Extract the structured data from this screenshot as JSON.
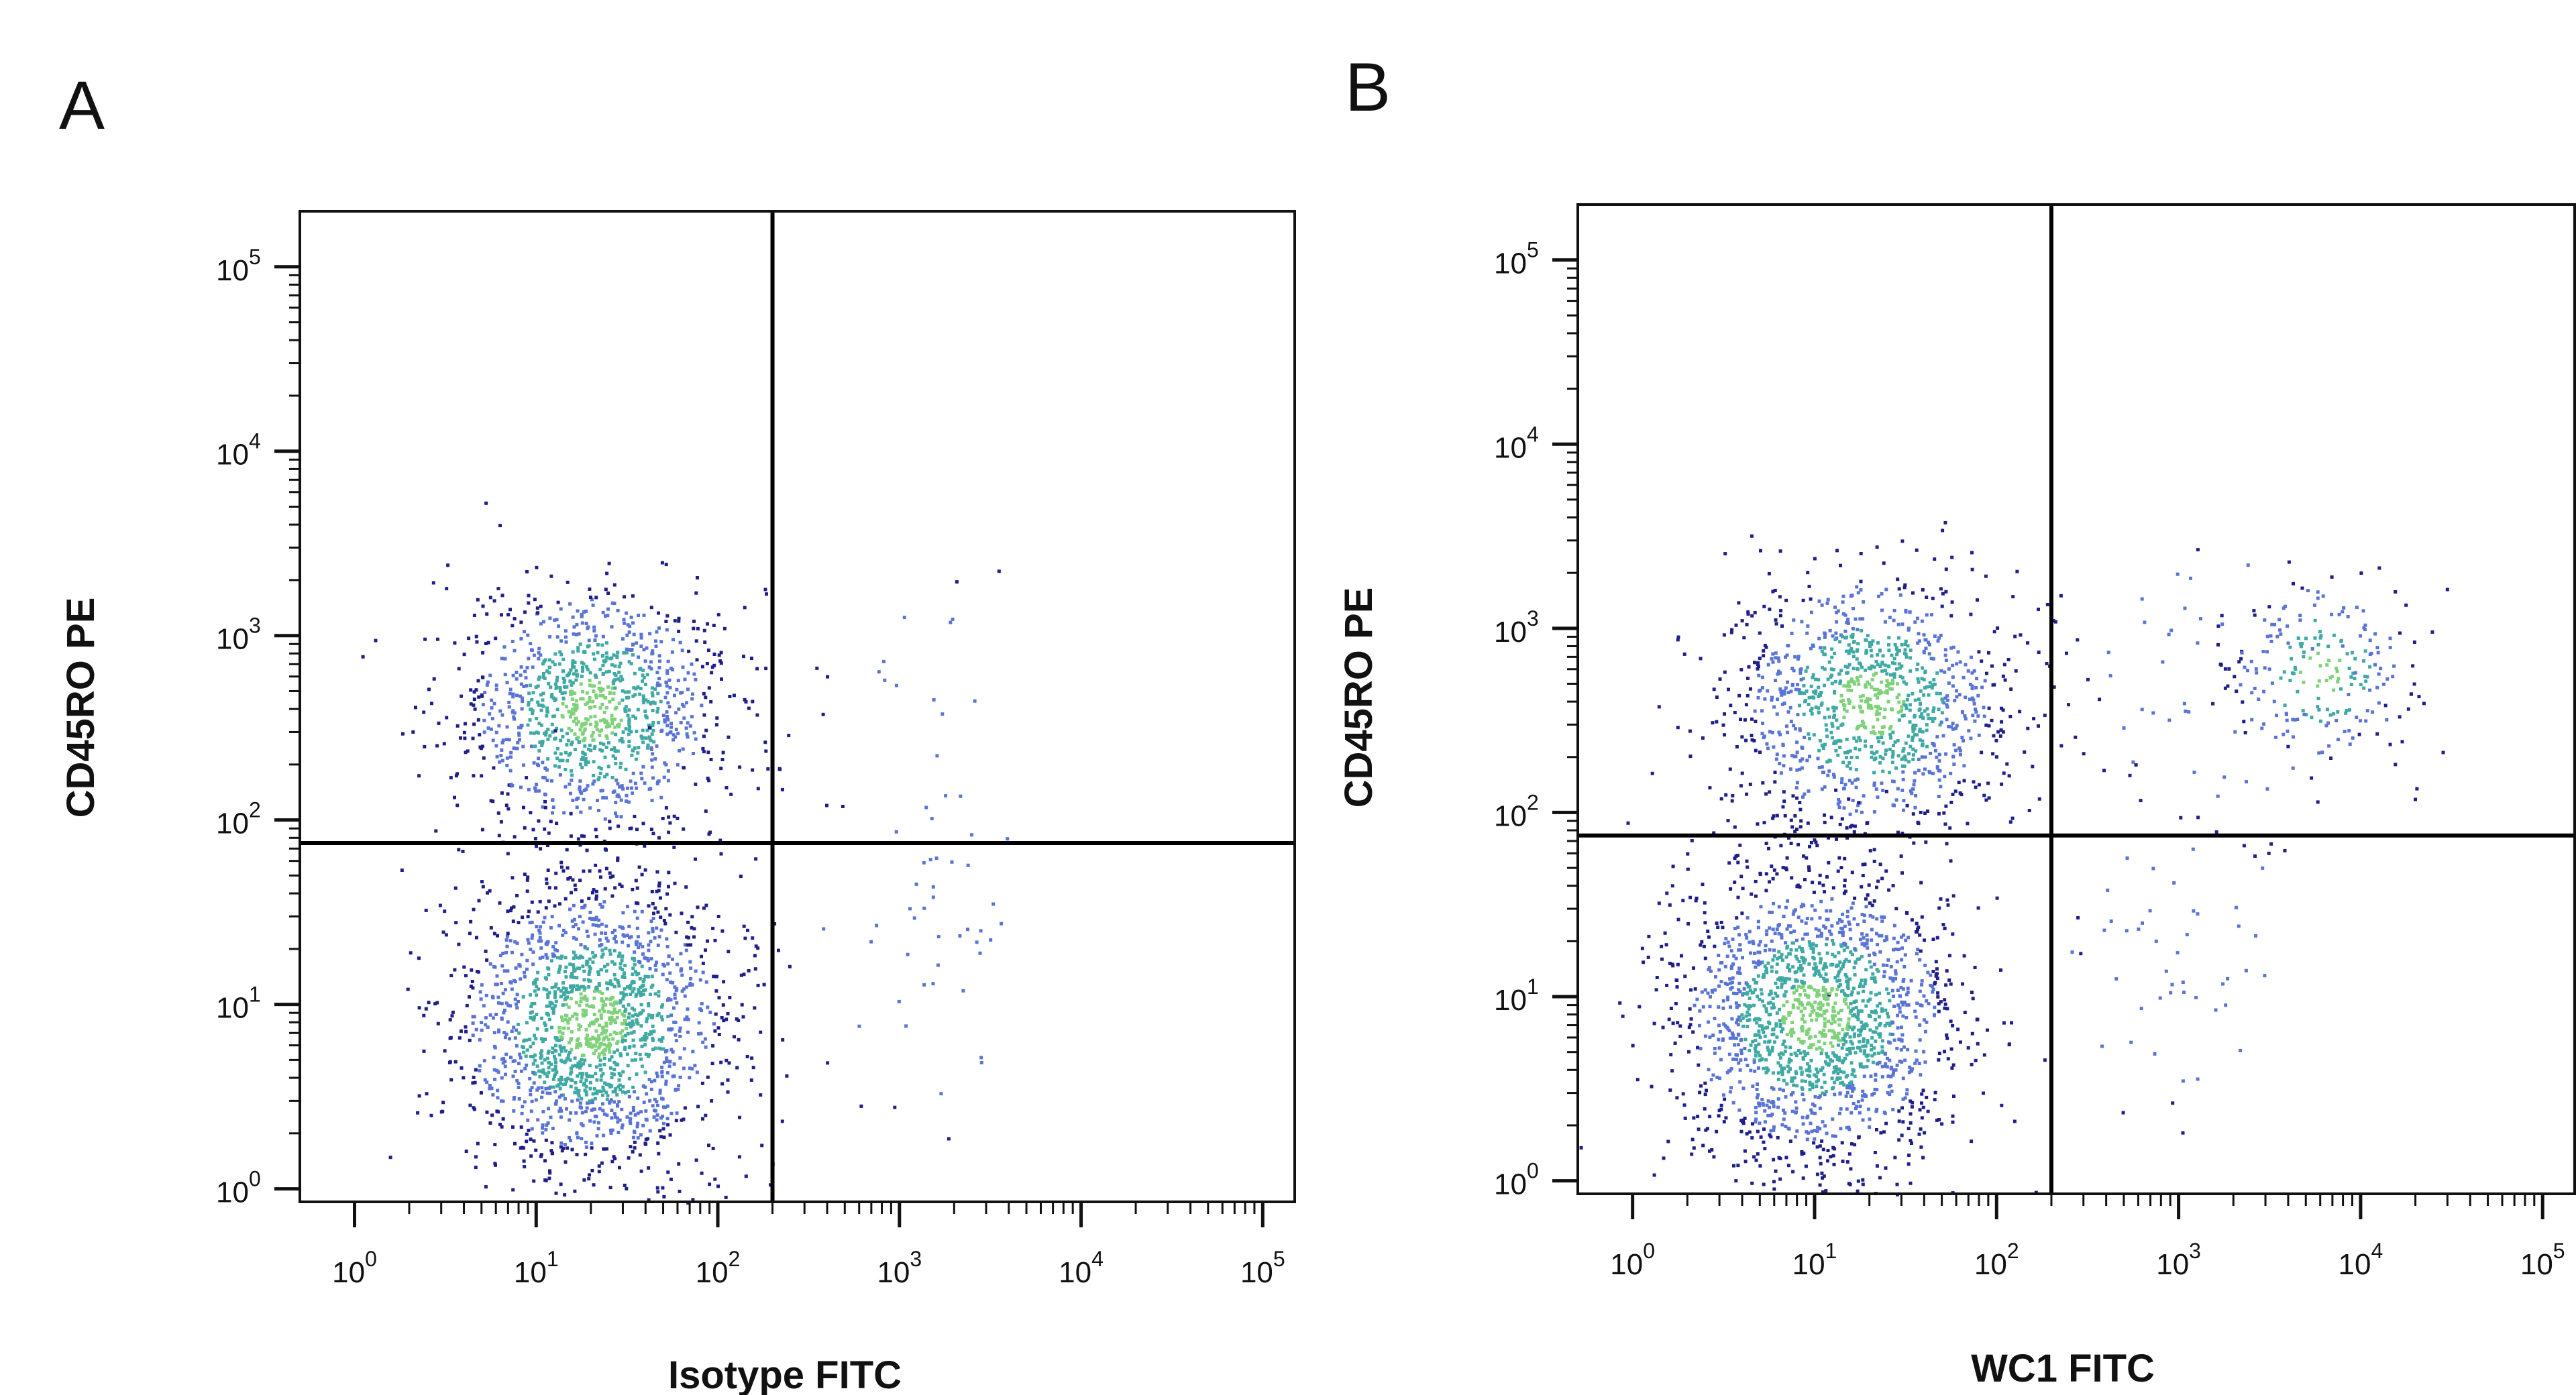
{
  "chart_data": [
    {
      "panel": "A",
      "type": "scatter",
      "xlabel": "Isotype FITC",
      "ylabel": "CD45RO PE",
      "x_scale": "log",
      "y_scale": "log",
      "xlim": [
        0.5,
        150000
      ],
      "ylim": [
        0.85,
        200000
      ],
      "x_ticks": [
        1,
        10,
        100,
        1000,
        10000,
        100000
      ],
      "y_ticks": [
        1,
        10,
        100,
        1000,
        10000,
        100000
      ],
      "tick_base": "10",
      "tick_exponents": [
        "0",
        "1",
        "2",
        "3",
        "4",
        "5"
      ],
      "quadrant_gate": {
        "x": 200,
        "y": 75
      },
      "clusters": [
        {
          "name": "",
          "center": [
            20,
            400
          ],
          "spread_decades": [
            0.38,
            0.32
          ],
          "count": 1100
        },
        {
          "name": "",
          "center": [
            20,
            8
          ],
          "spread_decades": [
            0.36,
            0.42
          ],
          "count": 1700
        },
        {
          "name": "",
          "center": [
            1500,
            20
          ],
          "spread_decades": [
            0.4,
            0.5
          ],
          "count": 45
        },
        {
          "name": "",
          "center": [
            1200,
            400
          ],
          "spread_decades": [
            0.35,
            0.4
          ],
          "count": 18
        }
      ]
    },
    {
      "panel": "B",
      "type": "scatter",
      "xlabel": "WC1 FITC",
      "ylabel": "CD45RO PE",
      "x_scale": "log",
      "y_scale": "log",
      "xlim": [
        0.5,
        150000
      ],
      "ylim": [
        0.85,
        200000
      ],
      "x_ticks": [
        1,
        10,
        100,
        1000,
        10000,
        100000
      ],
      "y_ticks": [
        1,
        10,
        100,
        1000,
        10000,
        100000
      ],
      "tick_base": "10",
      "tick_exponents": [
        "0",
        "1",
        "2",
        "3",
        "4",
        "5"
      ],
      "quadrant_gate": {
        "x": 200,
        "y": 75
      },
      "clusters": [
        {
          "name": "",
          "center": [
            20,
            400
          ],
          "spread_decades": [
            0.4,
            0.33
          ],
          "count": 1100
        },
        {
          "name": "",
          "center": [
            10,
            8
          ],
          "spread_decades": [
            0.38,
            0.42
          ],
          "count": 1800
        },
        {
          "name": "",
          "center": [
            6000,
            600
          ],
          "spread_decades": [
            0.28,
            0.22
          ],
          "count": 210
        },
        {
          "name": "",
          "center": [
            2000,
            500
          ],
          "spread_decades": [
            0.45,
            0.35
          ],
          "count": 60
        },
        {
          "name": "",
          "center": [
            1000,
            15
          ],
          "spread_decades": [
            0.3,
            0.45
          ],
          "count": 55
        }
      ]
    }
  ],
  "colors": {
    "axis": "#111111",
    "gate": "#000000",
    "density_low": "#1f1f8a",
    "density_mid": "#5a74d6",
    "density_high": "#3fa9a3",
    "density_peak": "#7fd17a"
  }
}
